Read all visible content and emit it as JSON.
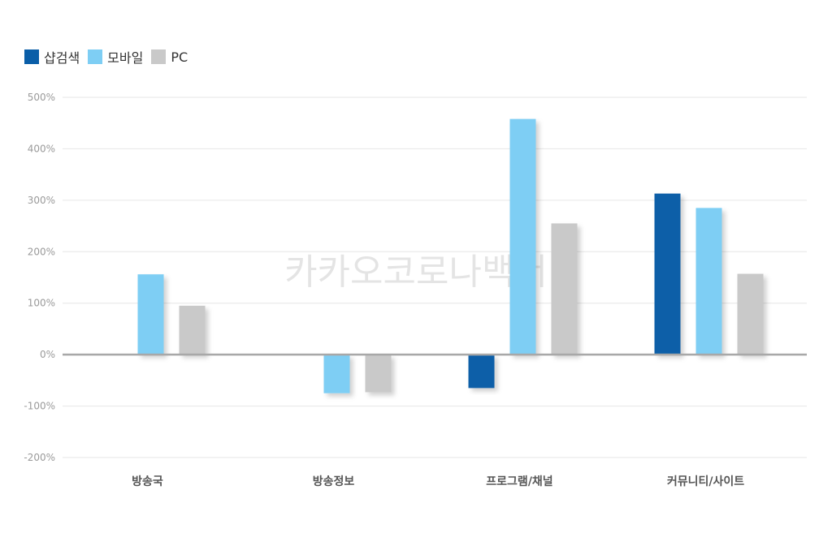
{
  "chart_data": {
    "type": "bar",
    "categories": [
      "방송국",
      "방송정보",
      "프로그램/채널",
      "커뮤니티/사이트"
    ],
    "series": [
      {
        "name": "샵검색",
        "color": "#0a5ea8",
        "values": [
          null,
          null,
          -65,
          313
        ]
      },
      {
        "name": "모바일",
        "color": "#7ecef4",
        "values": [
          156,
          -75,
          458,
          285
        ]
      },
      {
        "name": "PC",
        "color": "#c9c9c9",
        "values": [
          95,
          -73,
          255,
          157
        ]
      }
    ],
    "yticks": [
      "500%",
      "400%",
      "300%",
      "200%",
      "100%",
      "0%",
      "-100%",
      "-200%"
    ],
    "ylim": [
      -200,
      500
    ],
    "grid": true,
    "legend_position": "top-left",
    "watermark": "카카오코로나백서"
  }
}
